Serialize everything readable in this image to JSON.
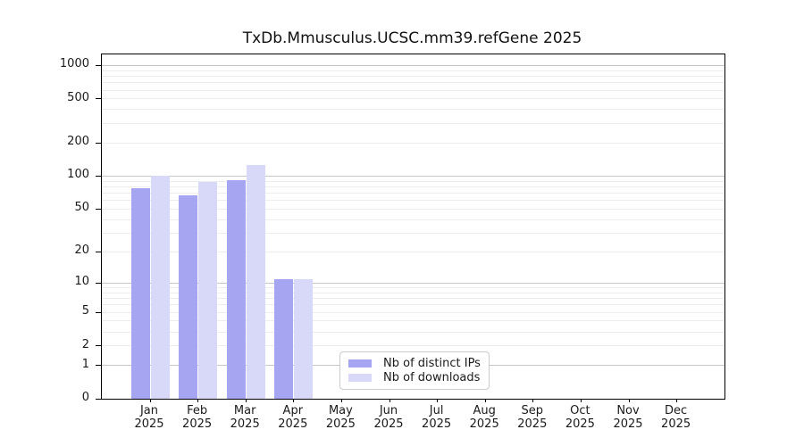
{
  "chart_data": {
    "type": "bar",
    "title": "TxDb.Mmusculus.UCSC.mm39.refGene 2025",
    "categories": [
      "Jan 2025",
      "Feb 2025",
      "Mar 2025",
      "Apr 2025",
      "May 2025",
      "Jun 2025",
      "Jul 2025",
      "Aug 2025",
      "Sep 2025",
      "Oct 2025",
      "Nov 2025",
      "Dec 2025"
    ],
    "series": [
      {
        "name": "Nb of distinct IPs",
        "color": "#a5a5f2",
        "values": [
          77,
          67,
          92,
          11,
          0,
          0,
          0,
          0,
          0,
          0,
          0,
          0
        ]
      },
      {
        "name": "Nb of downloads",
        "color": "#d8d8f8",
        "values": [
          101,
          89,
          126,
          11,
          0,
          0,
          0,
          0,
          0,
          0,
          0,
          0
        ]
      }
    ],
    "xlabel": "",
    "ylabel": "",
    "y_scale": "log1p",
    "y_ticks": [
      0,
      1,
      2,
      5,
      10,
      20,
      50,
      100,
      200,
      500,
      1000
    ],
    "ylim": [
      0,
      1260
    ],
    "grid": true,
    "grid_major_color": "#c6c6c6",
    "grid_minor_color": "#ededed",
    "legend_position": "lower-center-left"
  }
}
